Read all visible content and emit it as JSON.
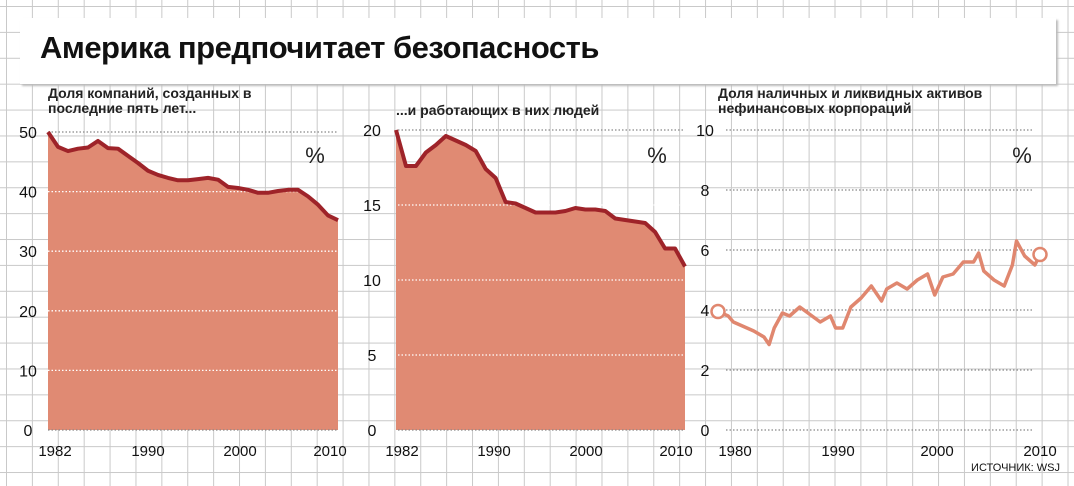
{
  "title": "Америка предпочитает безопасность",
  "source": "ИСТОЧНИК: WSJ",
  "colors": {
    "fill": "#e08a73",
    "line": "#9e2329",
    "line3": "#e0876f"
  },
  "chart_data": [
    {
      "type": "area",
      "title": "Доля компаний, созданных в последние пять лет...",
      "unit": "%",
      "ylim": [
        0,
        50
      ],
      "yticks": [
        0,
        10,
        20,
        30,
        40,
        50
      ],
      "xticks": [
        "1982",
        "1990",
        "2000",
        "2010"
      ],
      "x": [
        1981,
        1982,
        1983,
        1984,
        1985,
        1986,
        1987,
        1988,
        1989,
        1990,
        1991,
        1992,
        1993,
        1994,
        1995,
        1996,
        1997,
        1998,
        1999,
        2000,
        2001,
        2002,
        2003,
        2004,
        2005,
        2006,
        2007,
        2008,
        2009,
        2010
      ],
      "values": [
        50,
        47.5,
        46.8,
        47.2,
        47.4,
        48.5,
        47.3,
        47.2,
        46,
        44.8,
        43.5,
        42.8,
        42.3,
        41.9,
        41.9,
        42.1,
        42.3,
        42,
        40.8,
        40.6,
        40.3,
        39.8,
        39.8,
        40.1,
        40.3,
        40.3,
        39.2,
        37.8,
        36,
        35.2
      ]
    },
    {
      "type": "area",
      "title": "...и работающих в них людей",
      "unit": "%",
      "ylim": [
        0,
        20
      ],
      "yticks": [
        0,
        5,
        10,
        15,
        20
      ],
      "xticks": [
        "1982",
        "1990",
        "2000",
        "2010"
      ],
      "x": [
        1981,
        1982,
        1983,
        1984,
        1985,
        1986,
        1987,
        1988,
        1989,
        1990,
        1991,
        1992,
        1993,
        1994,
        1995,
        1996,
        1997,
        1998,
        1999,
        2000,
        2001,
        2002,
        2003,
        2004,
        2005,
        2006,
        2007,
        2008,
        2009,
        2010
      ],
      "values": [
        20,
        17.6,
        17.6,
        18.5,
        19,
        19.6,
        19.3,
        19,
        18.6,
        17.4,
        16.8,
        15.2,
        15.1,
        14.8,
        14.5,
        14.5,
        14.5,
        14.6,
        14.8,
        14.7,
        14.7,
        14.6,
        14.1,
        14,
        13.9,
        13.8,
        13.2,
        12.1,
        12.1,
        10.9
      ]
    },
    {
      "type": "line",
      "title": "Доля наличных и ликвидных активов нефинансовых корпораций",
      "unit": "%",
      "ylim": [
        0,
        10
      ],
      "yticks": [
        0,
        2,
        4,
        6,
        8,
        10
      ],
      "xticks": [
        "1980",
        "1990",
        "2000",
        "2010"
      ],
      "x": [
        1978.5,
        1979.5,
        1980,
        1981,
        1982,
        1983,
        1983.5,
        1984,
        1984.8,
        1985.5,
        1986.5,
        1987.5,
        1988.5,
        1989.5,
        1990,
        1990.7,
        1991.5,
        1992.5,
        1993.5,
        1994.5,
        1995,
        1996,
        1997,
        1998,
        1999,
        1999.7,
        2000.5,
        2001.5,
        2002.5,
        2003.5,
        2004,
        2004.5,
        2005.5,
        2006.5,
        2007.3,
        2007.7,
        2008.5,
        2009.5,
        2010
      ],
      "values": [
        3.95,
        3.8,
        3.6,
        3.45,
        3.3,
        3.1,
        2.85,
        3.4,
        3.9,
        3.8,
        4.1,
        3.85,
        3.6,
        3.8,
        3.4,
        3.4,
        4.1,
        4.4,
        4.8,
        4.3,
        4.7,
        4.9,
        4.7,
        5.0,
        5.2,
        4.5,
        5.1,
        5.2,
        5.6,
        5.6,
        5.9,
        5.3,
        5.0,
        4.8,
        5.5,
        6.3,
        5.8,
        5.5,
        5.85
      ]
    }
  ]
}
